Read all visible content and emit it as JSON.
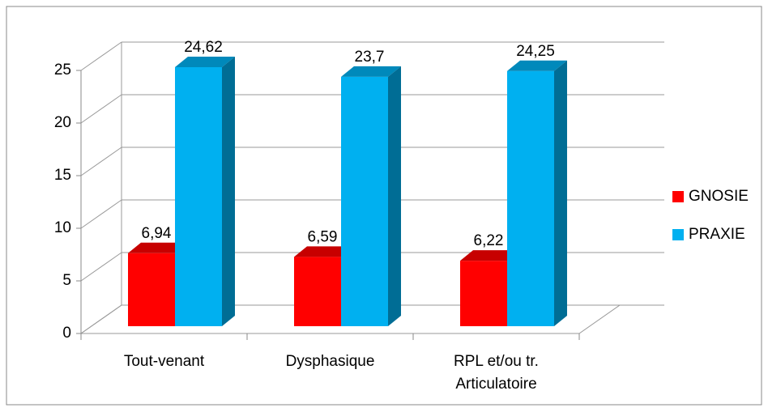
{
  "chart_data": {
    "type": "bar3d",
    "categories": [
      "Tout-venant",
      "Dysphasique",
      "RPL et/ou tr. Articulatoire"
    ],
    "series": [
      {
        "name": "GNOSIE",
        "color": "#ff0000",
        "values": [
          6.94,
          6.59,
          6.22
        ],
        "value_labels": [
          "6,94",
          "6,59",
          "6,22"
        ]
      },
      {
        "name": "PRAXIE",
        "color": "#00b0f0",
        "values": [
          24.62,
          23.7,
          24.25
        ],
        "value_labels": [
          "24,62",
          "23,7",
          "24,25"
        ]
      }
    ],
    "ylim": [
      0,
      25
    ],
    "yticks": [
      0,
      5,
      10,
      15,
      20,
      25
    ],
    "grid": true,
    "legend": "right"
  }
}
